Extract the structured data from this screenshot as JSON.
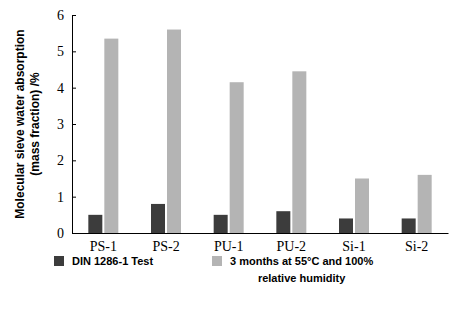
{
  "chart_data": {
    "type": "bar",
    "y_label": [
      "Molecular sieve water absorption",
      "(mass fraction) /%"
    ],
    "categories": [
      "PS-1",
      "PS-2",
      "PU-1",
      "PU-2",
      "Si-1",
      "Si-2"
    ],
    "series": [
      {
        "name": "DIN 1286-1 Test",
        "color": "#3c3c3c",
        "values": [
          0.5,
          0.8,
          0.5,
          0.6,
          0.4,
          0.4
        ]
      },
      {
        "name": "3 months at 55°C and 100% relative humidity",
        "color": "#b4b4b4",
        "values": [
          5.35,
          5.6,
          4.15,
          4.45,
          1.5,
          1.6
        ]
      }
    ],
    "ylim": [
      0,
      6
    ],
    "yticks": [
      0,
      1,
      2,
      3,
      4,
      5,
      6
    ],
    "grid": false,
    "legend": "bottom"
  }
}
